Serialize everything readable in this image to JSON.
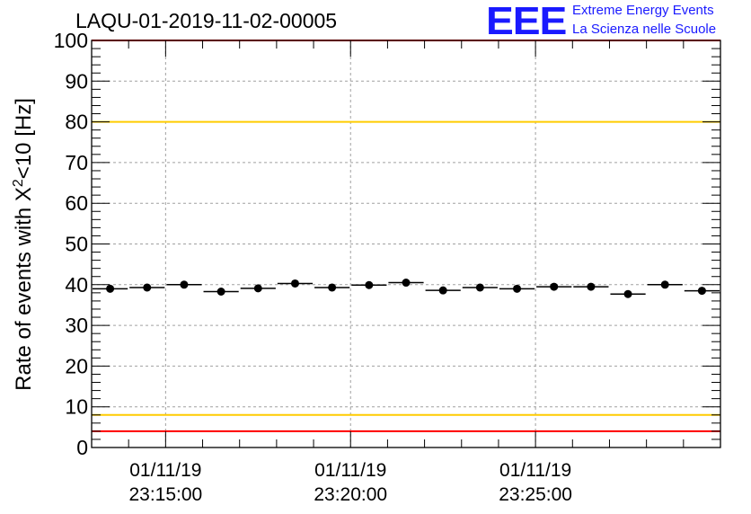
{
  "header": {
    "title": "LAQU-01-2019-11-02-00005",
    "logo_mark": "EEE",
    "logo_line1": "Extreme Energy Events",
    "logo_line2": "La Scienza nelle Scuole"
  },
  "chart_data": {
    "type": "scatter",
    "title": "LAQU-01-2019-11-02-00005",
    "ylabel_main": "Rate of events with X",
    "ylabel_sup": "2",
    "ylabel_tail": "<10 [Hz]",
    "ylim": [
      0,
      100
    ],
    "yticks": [
      "0",
      "10",
      "20",
      "30",
      "40",
      "50",
      "60",
      "70",
      "80",
      "90",
      "100"
    ],
    "xlim_minutes": [
      0,
      17
    ],
    "xticks": [
      {
        "t": 2,
        "date": "01/11/19",
        "time": "23:15:00"
      },
      {
        "t": 7,
        "date": "01/11/19",
        "time": "23:20:00"
      },
      {
        "t": 12,
        "date": "01/11/19",
        "time": "23:25:00"
      }
    ],
    "series": [
      {
        "name": "rate",
        "x": [
          0.5,
          1.5,
          2.5,
          3.5,
          4.5,
          5.5,
          6.5,
          7.5,
          8.5,
          9.5,
          10.5,
          11.5,
          12.5,
          13.5,
          14.5,
          15.5,
          16.5
        ],
        "values": [
          39.0,
          39.3,
          40.0,
          38.3,
          39.1,
          40.3,
          39.3,
          39.9,
          40.5,
          38.6,
          39.3,
          39.0,
          39.5,
          39.5,
          37.7,
          40.0,
          38.5
        ],
        "color": "#000000"
      }
    ],
    "reference_lines": [
      {
        "y": 4,
        "color": "#ff0000"
      },
      {
        "y": 8,
        "color": "#ffcc00"
      },
      {
        "y": 80,
        "color": "#ffcc00"
      },
      {
        "y": 100,
        "color": "#ff0000"
      }
    ],
    "grid": true
  }
}
